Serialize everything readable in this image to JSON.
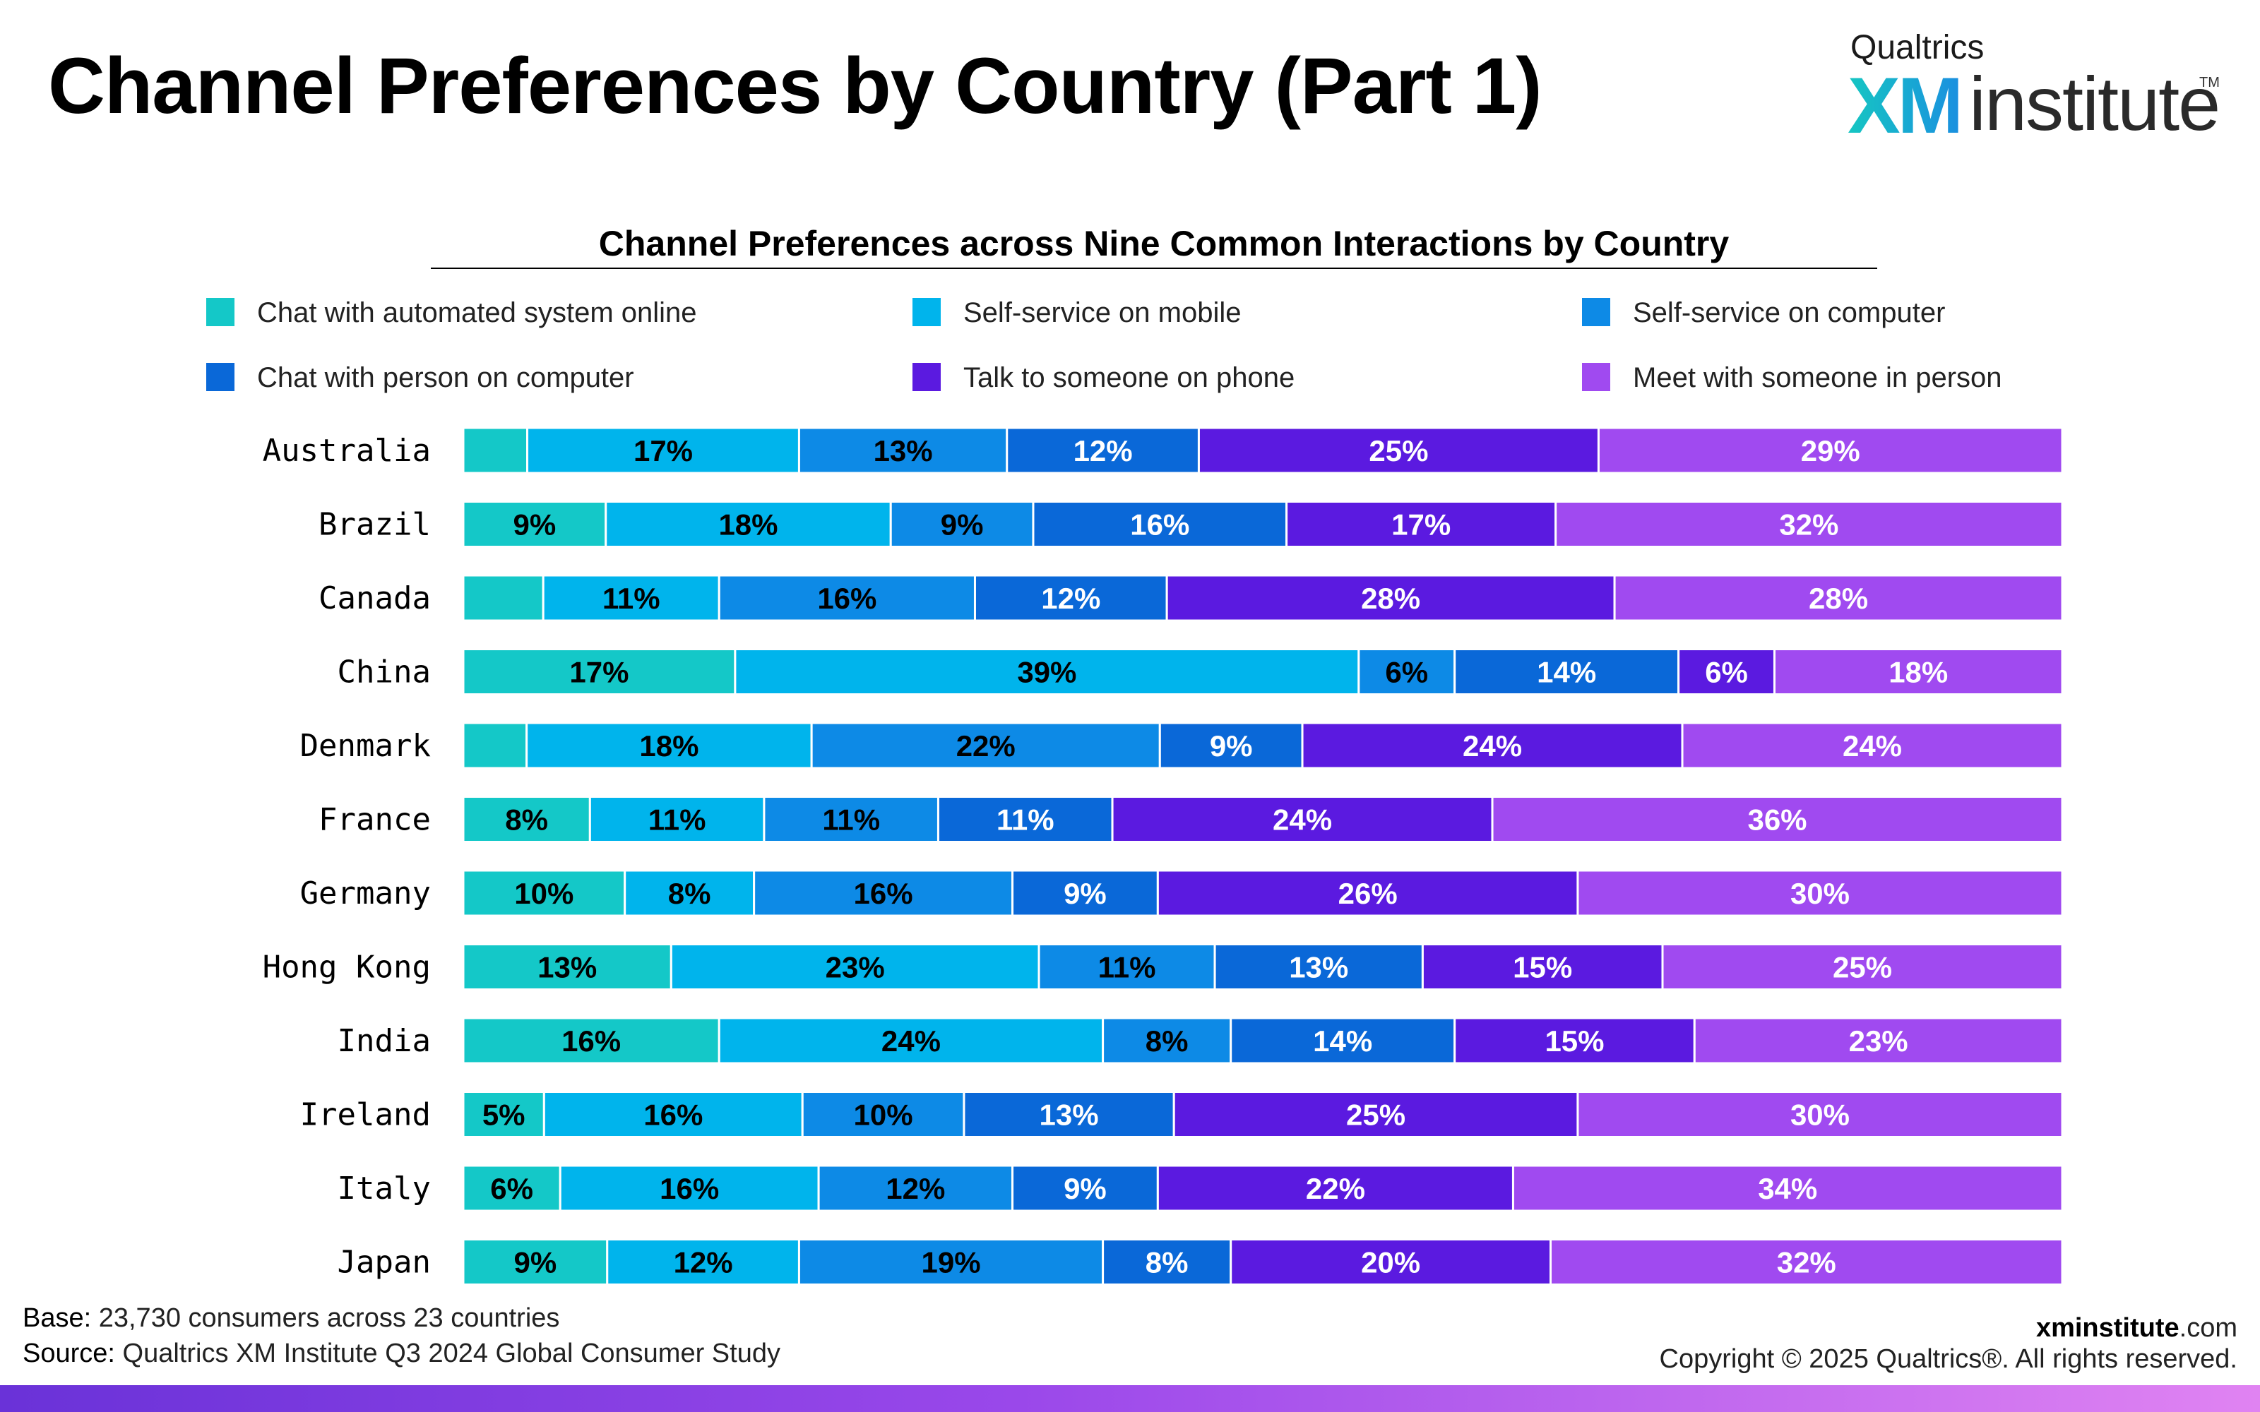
{
  "header": {
    "title": "Channel Preferences by Country (Part 1)",
    "logo": {
      "brand": "Qualtrics",
      "xm": "XM",
      "word": "institute",
      "tm": "TM"
    }
  },
  "footer": {
    "base_label": "Base:",
    "base_text": "23,730 consumers across 23 countries",
    "source_label": "Source:",
    "source_text": "Qualtrics XM Institute Q3 2024 Global Consumer Study",
    "site_bold": "xminstitute",
    "site_rest": ".com",
    "copyright": "Copyright © 2025 Qualtrics®. All rights reserved."
  },
  "chart_data": {
    "type": "bar",
    "orientation": "horizontal",
    "stacked": true,
    "normalized": true,
    "title": "Channel Preferences across Nine Common Interactions by Country",
    "legend_placement": "top",
    "grid": false,
    "xlim": [
      0,
      100
    ],
    "categories": [
      "Australia",
      "Brazil",
      "Canada",
      "China",
      "Denmark",
      "France",
      "Germany",
      "Hong Kong",
      "India",
      "Ireland",
      "Italy",
      "Japan"
    ],
    "series": [
      {
        "name": "Chat with automated system online",
        "color": "#14c8c8",
        "text_color": "#000000",
        "values": [
          4,
          9,
          5,
          17,
          4,
          8,
          10,
          13,
          16,
          5,
          6,
          9
        ],
        "labels": [
          "",
          "9%",
          "",
          "17%",
          "",
          "8%",
          "10%",
          "13%",
          "16%",
          "5%",
          "6%",
          "9%"
        ]
      },
      {
        "name": "Self-service on mobile",
        "color": "#00b4ec",
        "text_color": "#000000",
        "values": [
          17,
          18,
          11,
          39,
          18,
          11,
          8,
          23,
          24,
          16,
          16,
          12
        ],
        "labels": [
          "17%",
          "18%",
          "11%",
          "39%",
          "18%",
          "11%",
          "8%",
          "23%",
          "24%",
          "16%",
          "16%",
          "12%"
        ]
      },
      {
        "name": "Self-service on computer",
        "color": "#0d8ae6",
        "text_color": "#000000",
        "values": [
          13,
          9,
          16,
          6,
          22,
          11,
          16,
          11,
          8,
          10,
          12,
          19
        ],
        "labels": [
          "13%",
          "9%",
          "16%",
          "6%",
          "22%",
          "11%",
          "16%",
          "11%",
          "8%",
          "10%",
          "12%",
          "19%"
        ]
      },
      {
        "name": "Chat with person on computer",
        "color": "#0a68d8",
        "text_color": "#ffffff",
        "values": [
          12,
          16,
          12,
          14,
          9,
          11,
          9,
          13,
          14,
          13,
          9,
          8
        ],
        "labels": [
          "12%",
          "16%",
          "12%",
          "14%",
          "9%",
          "11%",
          "9%",
          "13%",
          "14%",
          "13%",
          "9%",
          "8%"
        ]
      },
      {
        "name": "Talk to someone on phone",
        "color": "#5b1ae0",
        "text_color": "#ffffff",
        "values": [
          25,
          17,
          28,
          6,
          24,
          24,
          26,
          15,
          15,
          25,
          22,
          20
        ],
        "labels": [
          "25%",
          "17%",
          "28%",
          "6%",
          "24%",
          "24%",
          "26%",
          "15%",
          "15%",
          "25%",
          "22%",
          "20%"
        ]
      },
      {
        "name": "Meet with someone in person",
        "color": "#a04af0",
        "text_color": "#ffffff",
        "values": [
          29,
          32,
          28,
          18,
          24,
          36,
          30,
          25,
          23,
          30,
          34,
          32
        ],
        "labels": [
          "29%",
          "32%",
          "28%",
          "18%",
          "24%",
          "36%",
          "30%",
          "25%",
          "23%",
          "30%",
          "34%",
          "32%"
        ]
      }
    ]
  }
}
